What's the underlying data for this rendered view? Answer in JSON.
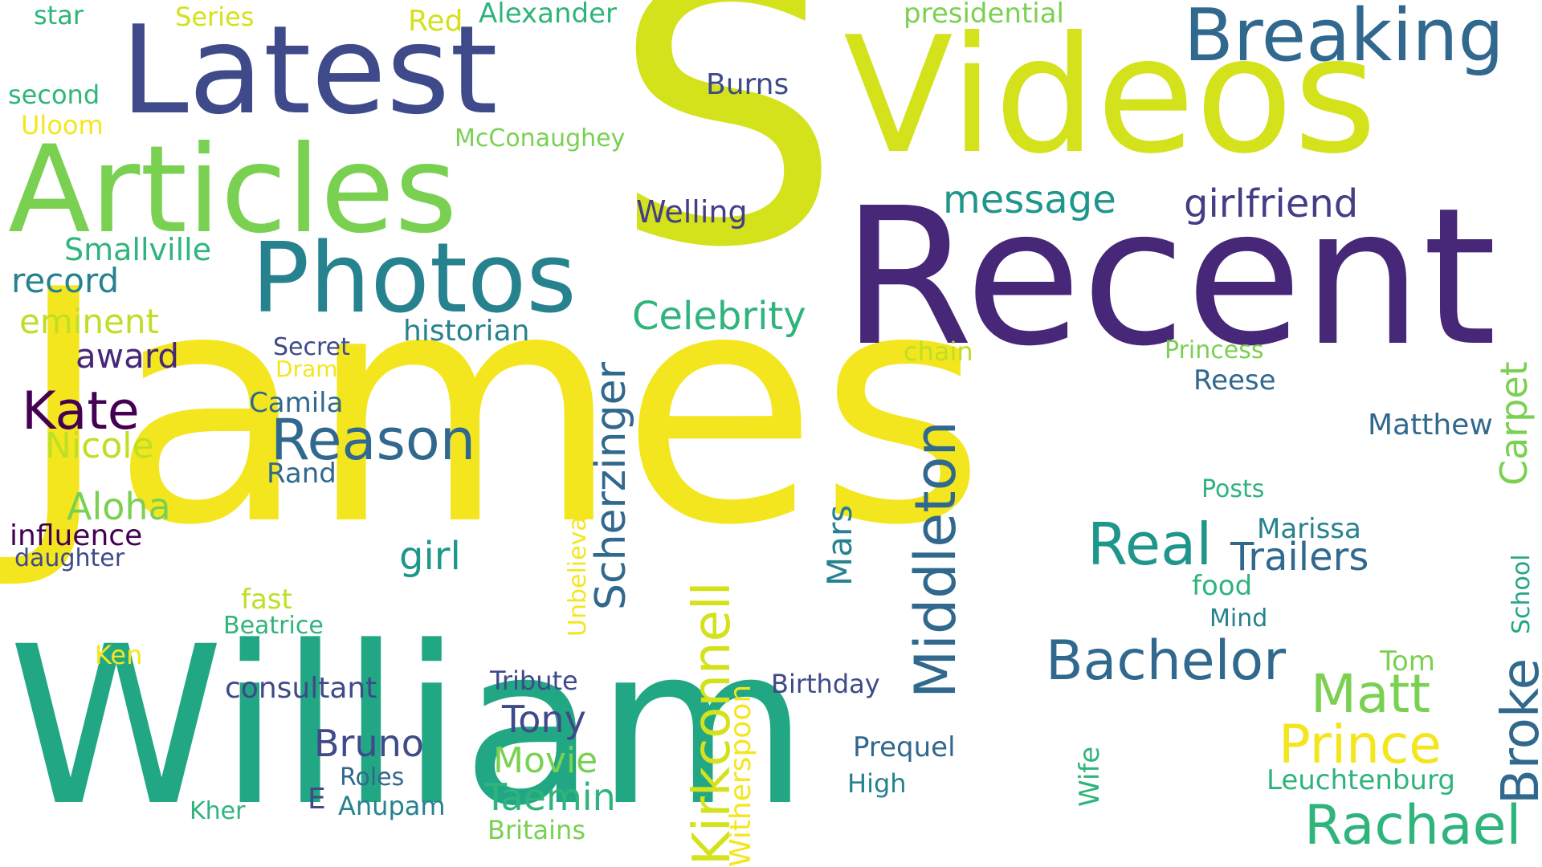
{
  "words": [
    {
      "text": "James",
      "color": "#f4e61e"
    },
    {
      "text": "William",
      "color": "#22a784"
    },
    {
      "text": "S",
      "color": "#d3e21b"
    },
    {
      "text": "Recent",
      "color": "#472777"
    },
    {
      "text": "Videos",
      "color": "#d3e21b"
    },
    {
      "text": "Latest",
      "color": "#3e4a89"
    },
    {
      "text": "Articles",
      "color": "#7ad151"
    },
    {
      "text": "Photos",
      "color": "#26828e"
    },
    {
      "text": "Breaking",
      "color": "#31688e"
    },
    {
      "text": "Reason",
      "color": "#31688e"
    },
    {
      "text": "Bachelor",
      "color": "#31688e"
    },
    {
      "text": "Rachael",
      "color": "#2fb47c"
    },
    {
      "text": "Real",
      "color": "#1f968b"
    },
    {
      "text": "Matt",
      "color": "#7ad151"
    },
    {
      "text": "Prince",
      "color": "#f4e61e"
    },
    {
      "text": "Kate",
      "color": "#440154"
    },
    {
      "text": "Middleton",
      "color": "#31688e"
    },
    {
      "text": "Kirkconnell",
      "color": "#d3e21b"
    },
    {
      "text": "Scherzinger",
      "color": "#31688e"
    },
    {
      "text": "Celebrity",
      "color": "#2fb47c"
    },
    {
      "text": "message",
      "color": "#1f968b"
    },
    {
      "text": "girlfriend",
      "color": "#433e85"
    },
    {
      "text": "Trailers",
      "color": "#31688e"
    },
    {
      "text": "Broke",
      "color": "#31688e"
    },
    {
      "text": "Carpet",
      "color": "#7ad151"
    },
    {
      "text": "Taemin",
      "color": "#2fb47c"
    },
    {
      "text": "Movie",
      "color": "#7ad151"
    },
    {
      "text": "Tony",
      "color": "#3e4a89"
    },
    {
      "text": "Bruno",
      "color": "#3e4a89"
    },
    {
      "text": "girl",
      "color": "#1f968b"
    },
    {
      "text": "Aloha",
      "color": "#7ad151"
    },
    {
      "text": "Nicole",
      "color": "#bddf26"
    },
    {
      "text": "award",
      "color": "#472777"
    },
    {
      "text": "eminent",
      "color": "#bddf26"
    },
    {
      "text": "record",
      "color": "#26828e"
    },
    {
      "text": "Smallville",
      "color": "#2fb47c"
    },
    {
      "text": "Welling",
      "color": "#433e85"
    },
    {
      "text": "Burns",
      "color": "#3e4a89"
    },
    {
      "text": "Mars",
      "color": "#26828e"
    },
    {
      "text": "Witherspoon",
      "color": "#f4e61e"
    },
    {
      "text": "Unbelievable",
      "color": "#f4e61e"
    },
    {
      "text": "consultant",
      "color": "#3e4a89"
    },
    {
      "text": "historian",
      "color": "#26828e"
    },
    {
      "text": "Camila",
      "color": "#31688e"
    },
    {
      "text": "Rand",
      "color": "#31688e"
    },
    {
      "text": "Secret",
      "color": "#3e4a89"
    },
    {
      "text": "Drama",
      "color": "#f4e61e"
    },
    {
      "text": "influence",
      "color": "#440154"
    },
    {
      "text": "daughter",
      "color": "#3e4a89"
    },
    {
      "text": "fast",
      "color": "#bddf26"
    },
    {
      "text": "Beatrice",
      "color": "#2fb47c"
    },
    {
      "text": "Ken",
      "color": "#f4e61e"
    },
    {
      "text": "Kher",
      "color": "#2fb47c"
    },
    {
      "text": "E",
      "color": "#3e4a89"
    },
    {
      "text": "Roles",
      "color": "#31688e"
    },
    {
      "text": "Anupam",
      "color": "#26828e"
    },
    {
      "text": "Britains",
      "color": "#7ad151"
    },
    {
      "text": "Tribute",
      "color": "#3e4a89"
    },
    {
      "text": "Birthday",
      "color": "#3e4a89"
    },
    {
      "text": "Prequel",
      "color": "#31688e"
    },
    {
      "text": "High",
      "color": "#26828e"
    },
    {
      "text": "Wife",
      "color": "#2fb47c"
    },
    {
      "text": "Leuchtenburg",
      "color": "#2fb47c"
    },
    {
      "text": "Tom",
      "color": "#7ad151"
    },
    {
      "text": "Mind",
      "color": "#26828e"
    },
    {
      "text": "food",
      "color": "#2fb47c"
    },
    {
      "text": "Marissa",
      "color": "#26828e"
    },
    {
      "text": "Posts",
      "color": "#2fb47c"
    },
    {
      "text": "School",
      "color": "#22a784"
    },
    {
      "text": "Matthew",
      "color": "#31688e"
    },
    {
      "text": "Reese",
      "color": "#31688e"
    },
    {
      "text": "Princess",
      "color": "#7ad151"
    },
    {
      "text": "chain",
      "color": "#bddf26"
    },
    {
      "text": "McConaughey",
      "color": "#7ad151"
    },
    {
      "text": "presidential",
      "color": "#7ad151"
    },
    {
      "text": "Alexander",
      "color": "#2fb47c"
    },
    {
      "text": "Red",
      "color": "#d3e21b"
    },
    {
      "text": "Series",
      "color": "#d3e21b"
    },
    {
      "text": "star",
      "color": "#2fb47c"
    },
    {
      "text": "second",
      "color": "#2fb47c"
    },
    {
      "text": "Uloom",
      "color": "#f4e61e"
    }
  ]
}
